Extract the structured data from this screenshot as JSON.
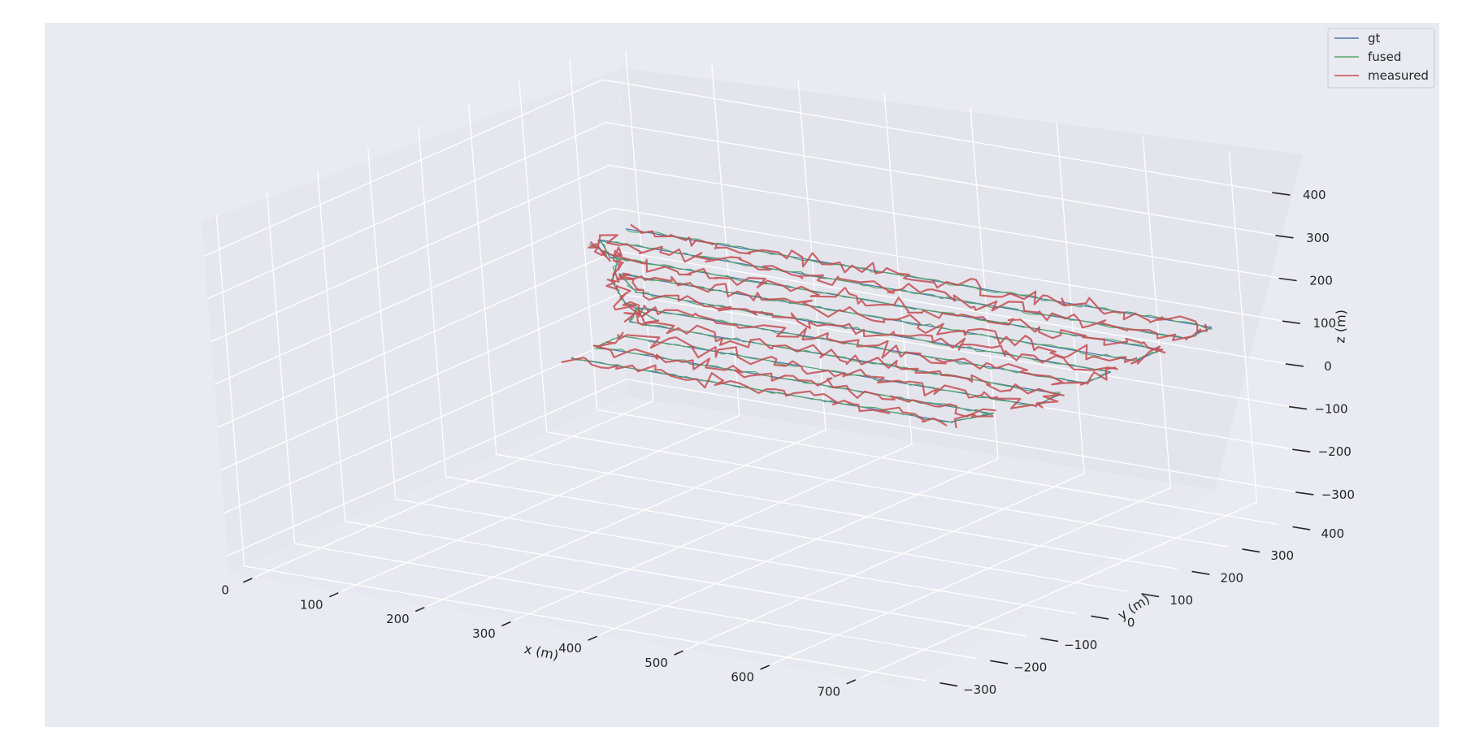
{
  "chart_data": {
    "type": "line3d",
    "title": "",
    "xlabel": "x (m)",
    "ylabel": "y (m)",
    "zlabel": "z (m)",
    "xlim": [
      -30,
      760
    ],
    "ylim": [
      -330,
      460
    ],
    "zlim": [
      -340,
      480
    ],
    "x_ticks": [
      0,
      100,
      200,
      300,
      400,
      500,
      600,
      700
    ],
    "y_ticks": [
      -300,
      -200,
      -100,
      0,
      100,
      200,
      300,
      400
    ],
    "z_ticks": [
      -300,
      -200,
      -100,
      0,
      100,
      200,
      300,
      400
    ],
    "x_tick_labels": [
      "0",
      "100",
      "200",
      "300",
      "400",
      "500",
      "600",
      "700"
    ],
    "y_tick_labels": [
      "−300",
      "−200",
      "−100",
      "0",
      "100",
      "200",
      "300",
      "400"
    ],
    "z_tick_labels": [
      "−300",
      "−200",
      "−100",
      "0",
      "100",
      "200",
      "300",
      "400"
    ],
    "grid": true,
    "legend_position": "top-right",
    "series": [
      {
        "name": "gt",
        "color": "#4c72b0"
      },
      {
        "name": "fused",
        "color": "#55a868"
      },
      {
        "name": "measured",
        "color": "#c44e52"
      }
    ],
    "trajectory": {
      "approach_path": [
        [
          20,
          330,
          100
        ],
        [
          70,
          300,
          100
        ],
        [
          110,
          220,
          100
        ],
        [
          160,
          160,
          100
        ],
        [
          220,
          120,
          100
        ]
      ],
      "lanes": [
        {
          "y": 400,
          "x_start": 20,
          "x_end": 700,
          "z": 100
        },
        {
          "y": 350,
          "x_start": 20,
          "x_end": 700,
          "z": 100
        },
        {
          "y": 300,
          "x_start": 60,
          "x_end": 700,
          "z": 100
        },
        {
          "y": 250,
          "x_start": 100,
          "x_end": 700,
          "z": 100
        },
        {
          "y": 200,
          "x_start": 150,
          "x_end": 700,
          "z": 100
        },
        {
          "y": 150,
          "x_start": 180,
          "x_end": 700,
          "z": 100
        },
        {
          "y": 100,
          "x_start": 200,
          "x_end": 700,
          "z": 100
        },
        {
          "y": 50,
          "x_start": 220,
          "x_end": 700,
          "z": 100
        },
        {
          "y": 0,
          "x_start": 220,
          "x_end": 680,
          "z": 100
        },
        {
          "y": -50,
          "x_start": 220,
          "x_end": 660,
          "z": 100
        }
      ]
    }
  }
}
